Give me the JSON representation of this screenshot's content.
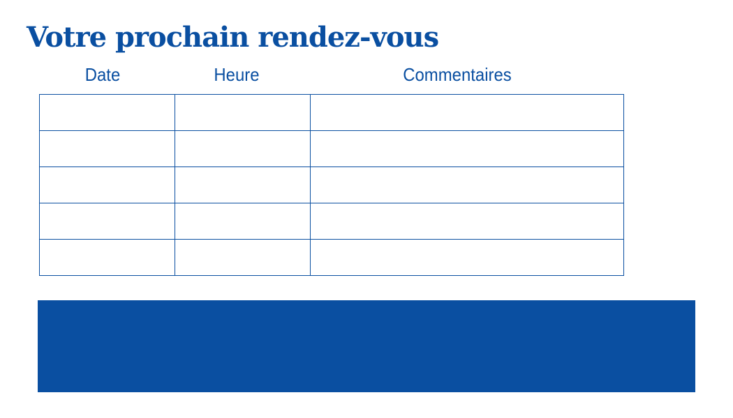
{
  "title": "Votre prochain rendez-vous",
  "table": {
    "columns": [
      "Date",
      "Heure",
      "Commentaires"
    ],
    "rows": [
      [
        "",
        "",
        ""
      ],
      [
        "",
        "",
        ""
      ],
      [
        "",
        "",
        ""
      ],
      [
        "",
        "",
        ""
      ],
      [
        "",
        "",
        ""
      ]
    ]
  },
  "colors": {
    "accent": "#0a4fa1",
    "background": "#ffffff"
  }
}
